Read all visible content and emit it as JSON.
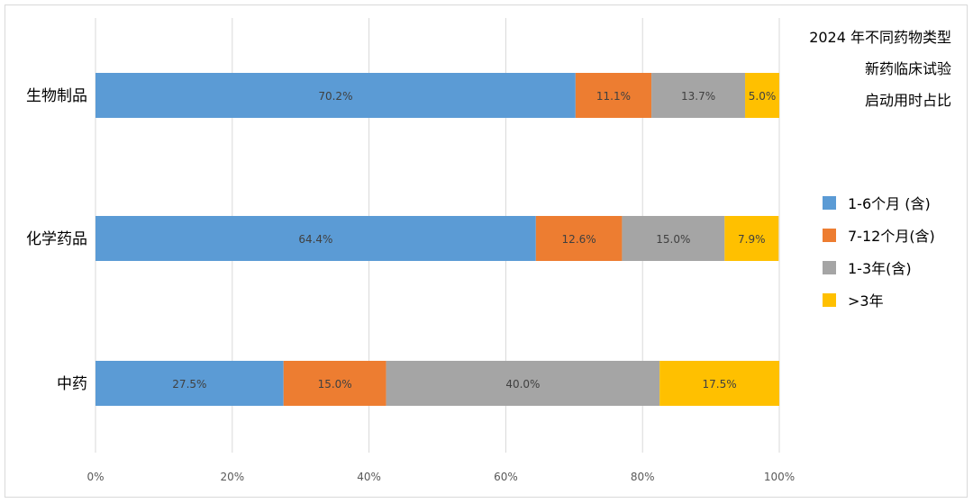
{
  "chart_data": {
    "type": "bar",
    "orientation": "horizontal",
    "stacked": "percent",
    "title_lines": [
      "2024 年不同药物类型",
      "新药临床试验",
      "启动用时占比"
    ],
    "categories": [
      "生物制品",
      "化学药品",
      "中药"
    ],
    "series": [
      {
        "name": "1-6个月 (含)",
        "color": "#5b9bd5",
        "values": [
          70.2,
          64.4,
          27.5
        ],
        "labels": [
          "70.2%",
          "64.4%",
          "27.5%"
        ]
      },
      {
        "name": "7-12个月(含)",
        "color": "#ed7d31",
        "values": [
          11.1,
          12.6,
          15.0
        ],
        "labels": [
          "11.1%",
          "12.6%",
          "15.0%"
        ]
      },
      {
        "name": "1-3年(含)",
        "color": "#a5a5a5",
        "values": [
          13.7,
          15.0,
          40.0
        ],
        "labels": [
          "13.7%",
          "15.0%",
          "40.0%"
        ]
      },
      {
        "name": ">3年",
        "color": "#ffc000",
        "values": [
          5.0,
          7.9,
          17.5
        ],
        "labels": [
          "5.0%",
          "7.9%",
          "17.5%"
        ]
      }
    ],
    "xlim": [
      0,
      100
    ],
    "xticks": [
      "0%",
      "20%",
      "40%",
      "60%",
      "80%",
      "100%"
    ],
    "grid": true,
    "legend_position": "right"
  }
}
